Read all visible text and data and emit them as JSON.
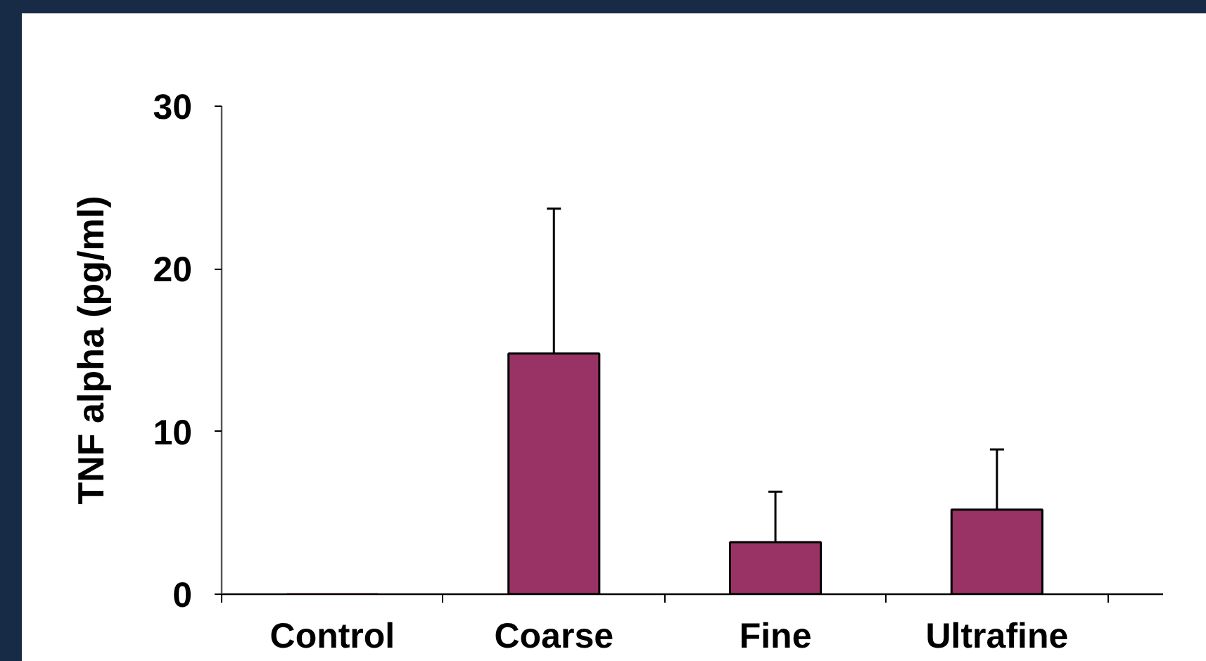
{
  "chart_data": {
    "type": "bar",
    "ylabel": "TNF alpha (pg/ml)",
    "categories": [
      "Control",
      "Coarse",
      "Fine",
      "Ultrafine"
    ],
    "values": [
      0,
      14.8,
      3.2,
      5.2
    ],
    "errors": [
      null,
      [
        14.8,
        23.7
      ],
      [
        3.2,
        6.3
      ],
      [
        5.2,
        8.9
      ]
    ],
    "color": "#993366",
    "ylim": [
      0,
      30
    ],
    "yticks": [
      0,
      10,
      20,
      30
    ]
  }
}
